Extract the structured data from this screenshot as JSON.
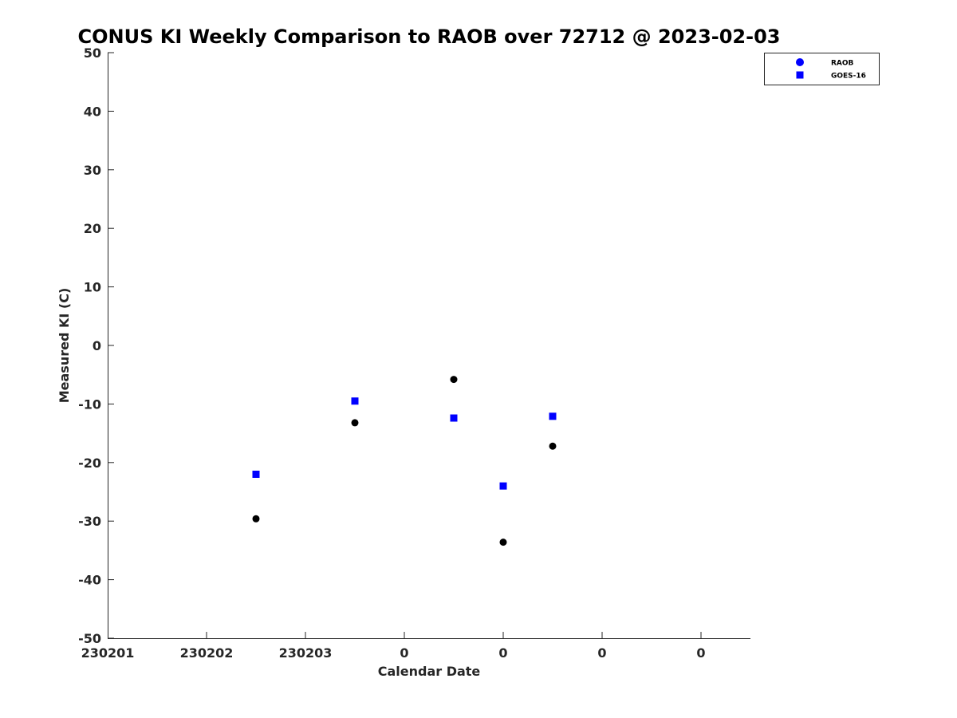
{
  "chart_data": {
    "type": "scatter",
    "title": "CONUS KI Weekly Comparison to RAOB over 72712 @ 2023-02-03",
    "xlabel": "Calendar Date",
    "ylabel": "Measured KI (C)",
    "ylim": [
      -50,
      50
    ],
    "yticks": [
      -50,
      -40,
      -30,
      -20,
      -10,
      0,
      10,
      20,
      30,
      40,
      50
    ],
    "xlim": [
      0,
      6.5
    ],
    "xticks": [
      0,
      1,
      2,
      3,
      4,
      5,
      6
    ],
    "xtick_labels": [
      "230201",
      "230202",
      "230203",
      "0",
      "0",
      "0",
      "0"
    ],
    "legend_position": "top-right",
    "series": [
      {
        "name": "RAOB",
        "marker": "circle",
        "color": "#000000",
        "legend_color": "#0000ff",
        "x": [
          1.5,
          2.5,
          3.5,
          4.0,
          4.5
        ],
        "y": [
          -29.6,
          -13.2,
          -5.8,
          -33.6,
          -17.2
        ]
      },
      {
        "name": "GOES-16",
        "marker": "square",
        "color": "#0000ff",
        "legend_color": "#0000ff",
        "x": [
          1.5,
          2.5,
          3.5,
          4.0,
          4.5
        ],
        "y": [
          -22.0,
          -9.5,
          -12.4,
          -24.0,
          -12.1
        ]
      }
    ]
  }
}
